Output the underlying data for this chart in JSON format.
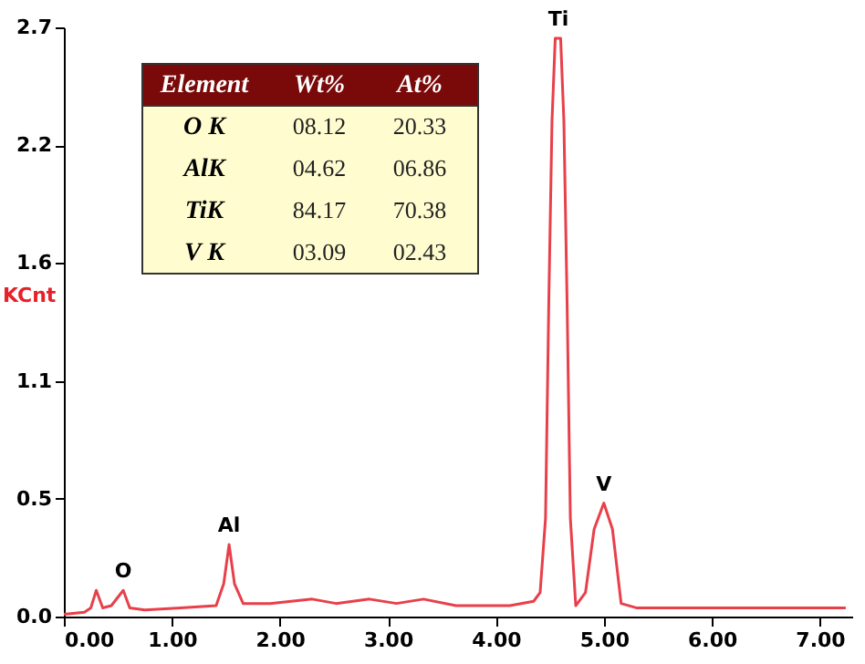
{
  "chart_data": {
    "type": "line",
    "ylabel": "KCnt",
    "x": [
      0,
      0.19,
      0.25,
      0.3,
      0.36,
      0.44,
      0.55,
      0.61,
      0.75,
      1.08,
      1.41,
      1.48,
      1.53,
      1.58,
      1.66,
      1.91,
      2.3,
      2.52,
      2.83,
      3.08,
      3.33,
      3.63,
      4.13,
      4.35,
      4.41,
      4.46,
      4.49,
      4.52,
      4.55,
      4.6,
      4.63,
      4.66,
      4.69,
      4.74,
      4.83,
      4.91,
      5.0,
      5.08,
      5.16,
      5.3,
      6.07,
      7.0,
      7.24
    ],
    "series": [
      {
        "color": "#e8404a",
        "values": [
          0.01,
          0.02,
          0.04,
          0.12,
          0.04,
          0.05,
          0.12,
          0.04,
          0.03,
          0.04,
          0.05,
          0.15,
          0.33,
          0.15,
          0.06,
          0.06,
          0.08,
          0.06,
          0.08,
          0.06,
          0.08,
          0.05,
          0.05,
          0.07,
          0.11,
          0.45,
          1.43,
          2.27,
          2.65,
          2.65,
          2.27,
          1.43,
          0.45,
          0.05,
          0.11,
          0.4,
          0.52,
          0.4,
          0.06,
          0.04,
          0.04,
          0.04,
          0.04
        ]
      }
    ],
    "xlim": [
      0,
      7.3
    ],
    "ylim": [
      0,
      2.7
    ],
    "xticks": [
      {
        "value": 0,
        "label": "0.00"
      },
      {
        "value": 1,
        "label": "1.00"
      },
      {
        "value": 2,
        "label": "2.00"
      },
      {
        "value": 3,
        "label": "3.00"
      },
      {
        "value": 4,
        "label": "4.00"
      },
      {
        "value": 5,
        "label": "5.00"
      },
      {
        "value": 6,
        "label": "6.00"
      },
      {
        "value": 7,
        "label": "7.00"
      }
    ],
    "yticks": [
      {
        "value": 0,
        "label": "0.0"
      },
      {
        "value": 0.54,
        "label": "0.5"
      },
      {
        "value": 1.08,
        "label": "1.1"
      },
      {
        "value": 1.62,
        "label": "1.6"
      },
      {
        "value": 2.16,
        "label": "2.2"
      },
      2.7
    ],
    "grid": false,
    "annotations": [
      {
        "text": "O",
        "x": 0.55,
        "y": 0.12
      },
      {
        "text": "Al",
        "x": 1.53,
        "y": 0.33
      },
      {
        "text": "Ti",
        "x": 4.58,
        "y": 2.65
      },
      {
        "text": "V",
        "x": 5.0,
        "y": 0.52
      },
      "Element",
      "Wt%",
      "At%",
      "O K",
      "08.12",
      "20.33",
      "AlK",
      "04.62",
      "06.86",
      "TiK",
      "84.17",
      "70.38",
      "V K",
      "03.09",
      "02.43"
    ]
  }
}
